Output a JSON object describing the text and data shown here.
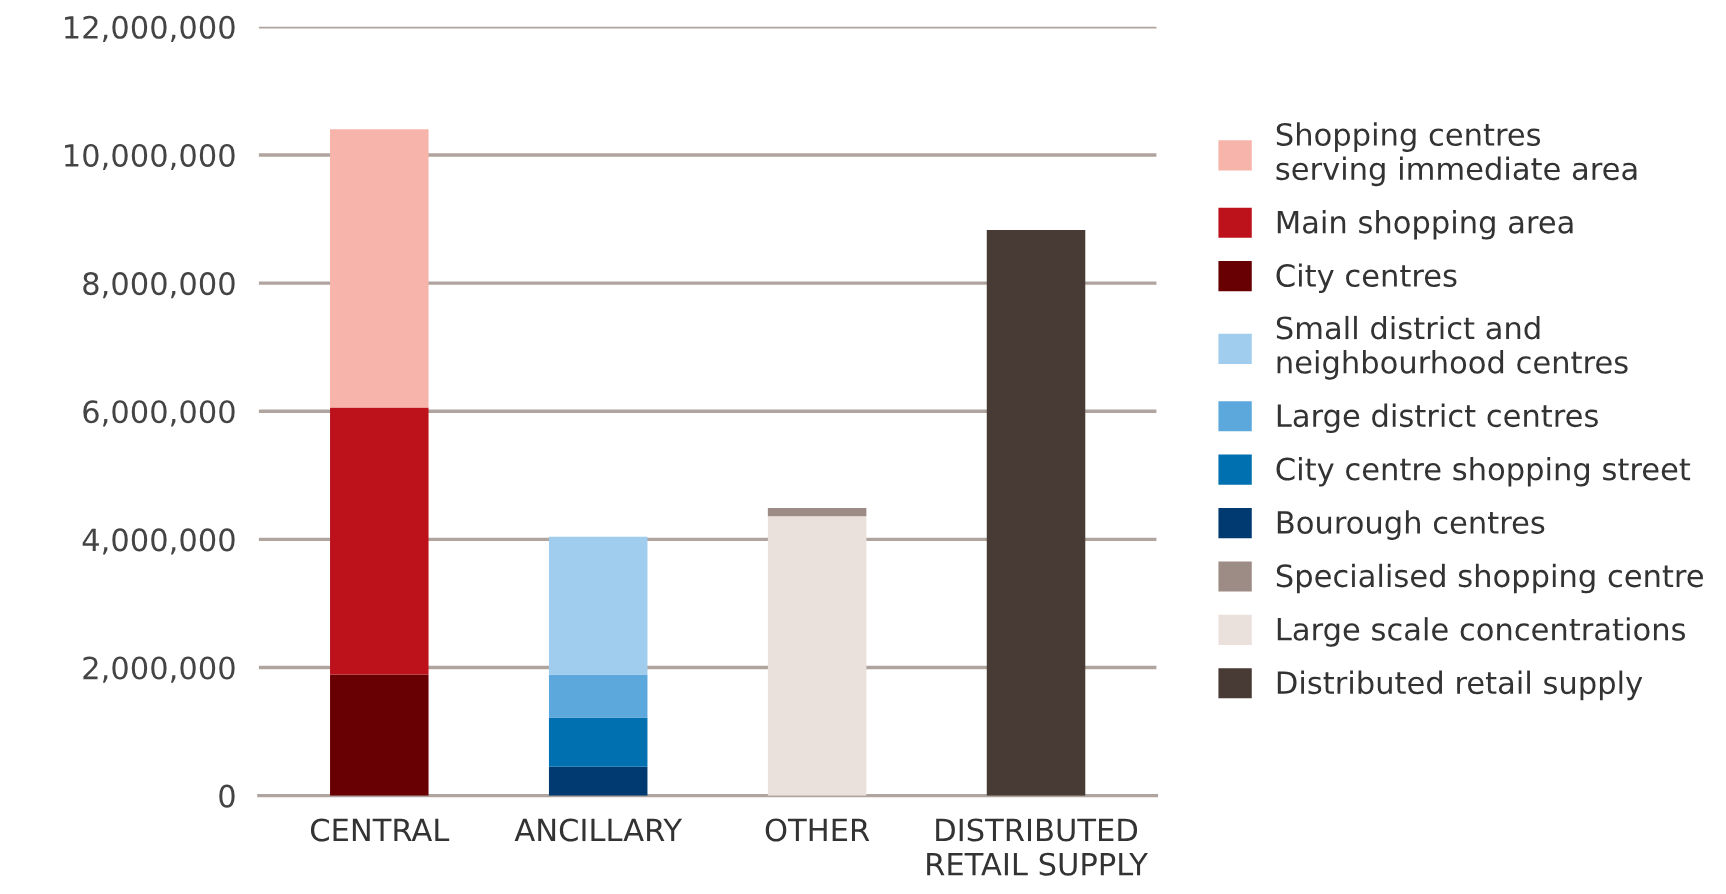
{
  "chart_data": {
    "type": "bar",
    "stacked": true,
    "categories": [
      "CENTRAL",
      "ANCILLARY",
      "OTHER",
      "DISTRIBUTED\nRETAIL SUPPLY"
    ],
    "series": [
      {
        "name": "Distributed retail supply",
        "color": "#483b36",
        "values": [
          null,
          null,
          null,
          8830000
        ]
      },
      {
        "name": "Large scale concentrations",
        "color": "#ebe1dc",
        "values": [
          null,
          null,
          4360000,
          null
        ]
      },
      {
        "name": "Specialised shopping centre",
        "color": "#9d8c86",
        "values": [
          null,
          null,
          130000,
          null
        ]
      },
      {
        "name": "Bourough centres",
        "color": "#003a70",
        "values": [
          null,
          450000,
          null,
          null
        ]
      },
      {
        "name": "City centre shopping street",
        "color": "#0070b0",
        "values": [
          null,
          770000,
          null,
          null
        ]
      },
      {
        "name": "Large district centres",
        "color": "#5ca8dc",
        "values": [
          null,
          670000,
          null,
          null
        ]
      },
      {
        "name": "Small district and\nneighbourhood centres",
        "color": "#a0cdee",
        "values": [
          null,
          2150000,
          null,
          null
        ]
      },
      {
        "name": "City centres",
        "color": "#680003",
        "values": [
          1890000,
          null,
          null,
          null
        ]
      },
      {
        "name": "Main shopping area",
        "color": "#bd111b",
        "values": [
          4170000,
          null,
          null,
          null
        ]
      },
      {
        "name": "Shopping centres\nserving immediate area",
        "color": "#f7b4aa",
        "values": [
          4340000,
          null,
          null,
          null
        ]
      }
    ],
    "ylim": [
      0,
      12000000
    ],
    "yticks": [
      {
        "value": 0,
        "label": "0"
      },
      {
        "value": 2000000,
        "label": "2,000,000"
      },
      {
        "value": 4000000,
        "label": "4,000,000"
      },
      {
        "value": 6000000,
        "label": "6,000,000"
      },
      {
        "value": 8000000,
        "label": "8,000,000"
      },
      {
        "value": 10000000,
        "label": "10,000,000"
      },
      {
        "value": 12000000,
        "label": "12,000,000"
      }
    ],
    "grid": "y",
    "legend": "right"
  }
}
